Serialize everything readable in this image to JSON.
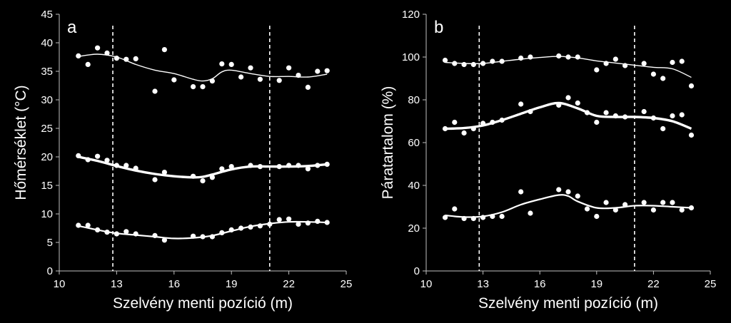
{
  "chart_data": [
    {
      "type": "scatter",
      "panel_label": "a",
      "xlabel": "Szelvény menti pozíció (m)",
      "ylabel": "Hőmérséklet (°C)",
      "xlim": [
        10,
        25
      ],
      "ylim": [
        0,
        45
      ],
      "xticks": [
        "10",
        "13",
        "16",
        "19",
        "22",
        "25"
      ],
      "yticks": [
        "0",
        "5",
        "10",
        "15",
        "20",
        "25",
        "30",
        "35",
        "40",
        "45"
      ],
      "vlines": [
        12.8,
        21.0
      ],
      "series": [
        {
          "points": [
            [
              11.0,
              37.7
            ],
            [
              11.5,
              36.2
            ],
            [
              12.0,
              39.1
            ],
            [
              12.5,
              38.2
            ],
            [
              13.0,
              37.3
            ],
            [
              13.5,
              37.1
            ],
            [
              14.0,
              37.2
            ],
            [
              15.0,
              31.5
            ],
            [
              15.5,
              38.8
            ],
            [
              16.0,
              33.5
            ],
            [
              17.0,
              32.3
            ],
            [
              17.5,
              32.3
            ],
            [
              18.0,
              33.3
            ],
            [
              18.5,
              36.3
            ],
            [
              19.0,
              36.2
            ],
            [
              19.5,
              34.0
            ],
            [
              20.0,
              35.6
            ],
            [
              20.5,
              33.6
            ],
            [
              21.5,
              33.4
            ],
            [
              22.0,
              35.6
            ],
            [
              22.5,
              34.3
            ],
            [
              23.0,
              32.2
            ],
            [
              23.5,
              35.0
            ],
            [
              24.0,
              35.1
            ]
          ],
          "trend": [
            [
              11,
              37.6
            ],
            [
              12,
              38.0
            ],
            [
              13,
              37.5
            ],
            [
              14,
              36.2
            ],
            [
              15,
              35.2
            ],
            [
              16,
              34.6
            ],
            [
              17,
              33.6
            ],
            [
              17.5,
              33.3
            ],
            [
              18,
              33.7
            ],
            [
              18.5,
              34.9
            ],
            [
              19,
              35.2
            ],
            [
              20,
              34.6
            ],
            [
              21,
              34.1
            ],
            [
              22,
              34.1
            ],
            [
              23,
              34.0
            ],
            [
              24,
              34.5
            ]
          ]
        },
        {
          "points": [
            [
              11.0,
              20.2
            ],
            [
              11.5,
              19.5
            ],
            [
              12.0,
              20.1
            ],
            [
              12.5,
              19.4
            ],
            [
              13.0,
              18.5
            ],
            [
              13.5,
              18.5
            ],
            [
              14.0,
              18.0
            ],
            [
              15.0,
              16.0
            ],
            [
              15.5,
              17.3
            ],
            [
              17.0,
              16.6
            ],
            [
              17.5,
              15.8
            ],
            [
              18.0,
              16.4
            ],
            [
              18.5,
              17.9
            ],
            [
              19.0,
              18.3
            ],
            [
              20.0,
              18.5
            ],
            [
              20.5,
              18.3
            ],
            [
              21.5,
              18.3
            ],
            [
              22.0,
              18.5
            ],
            [
              22.5,
              18.5
            ],
            [
              23.0,
              17.9
            ],
            [
              23.5,
              18.5
            ],
            [
              24.0,
              18.7
            ]
          ],
          "trend": [
            [
              11,
              20.0
            ],
            [
              12,
              19.3
            ],
            [
              13,
              18.4
            ],
            [
              14,
              17.6
            ],
            [
              15,
              17.0
            ],
            [
              16,
              16.6
            ],
            [
              17,
              16.4
            ],
            [
              17.5,
              16.5
            ],
            [
              18,
              16.9
            ],
            [
              19,
              17.8
            ],
            [
              20,
              18.3
            ],
            [
              21,
              18.3
            ],
            [
              22,
              18.3
            ],
            [
              23,
              18.4
            ],
            [
              24,
              18.7
            ]
          ]
        },
        {
          "points": [
            [
              11.0,
              8.0
            ],
            [
              11.5,
              8.0
            ],
            [
              12.0,
              7.2
            ],
            [
              12.5,
              6.8
            ],
            [
              13.0,
              6.5
            ],
            [
              13.5,
              6.9
            ],
            [
              14.0,
              6.5
            ],
            [
              15.0,
              6.2
            ],
            [
              15.5,
              5.4
            ],
            [
              17.0,
              6.1
            ],
            [
              17.5,
              6.0
            ],
            [
              18.0,
              6.0
            ],
            [
              18.5,
              6.7
            ],
            [
              19.0,
              7.2
            ],
            [
              19.5,
              7.5
            ],
            [
              20.0,
              7.7
            ],
            [
              20.5,
              7.9
            ],
            [
              21.0,
              8.2
            ],
            [
              21.5,
              9.0
            ],
            [
              22.0,
              9.1
            ],
            [
              22.5,
              8.2
            ],
            [
              23.0,
              8.4
            ],
            [
              23.5,
              8.7
            ],
            [
              24.0,
              8.5
            ]
          ],
          "trend": [
            [
              11,
              7.9
            ],
            [
              12,
              7.2
            ],
            [
              13,
              6.6
            ],
            [
              14,
              6.3
            ],
            [
              15,
              6.0
            ],
            [
              16,
              5.7
            ],
            [
              17,
              5.8
            ],
            [
              18,
              6.2
            ],
            [
              19,
              7.0
            ],
            [
              20,
              7.8
            ],
            [
              21,
              8.3
            ],
            [
              22,
              8.6
            ],
            [
              23,
              8.6
            ],
            [
              24,
              8.5
            ]
          ]
        }
      ]
    },
    {
      "type": "scatter",
      "panel_label": "b",
      "xlabel": "Szelvény menti pozíció (m)",
      "ylabel": "Páratartalom (%)",
      "xlim": [
        10,
        25
      ],
      "ylim": [
        0,
        120
      ],
      "xticks": [
        "10",
        "13",
        "16",
        "19",
        "22",
        "25"
      ],
      "yticks": [
        "0",
        "20",
        "40",
        "60",
        "80",
        "100",
        "120"
      ],
      "vlines": [
        12.8,
        21.0
      ],
      "series": [
        {
          "points": [
            [
              11.0,
              98.5
            ],
            [
              11.5,
              97.0
            ],
            [
              12.0,
              96.5
            ],
            [
              12.5,
              96.5
            ],
            [
              13.0,
              97.0
            ],
            [
              13.5,
              98.0
            ],
            [
              14.0,
              98.0
            ],
            [
              15.0,
              99.5
            ],
            [
              15.5,
              100.0
            ],
            [
              17.0,
              100.5
            ],
            [
              17.5,
              100.0
            ],
            [
              18.0,
              100.0
            ],
            [
              19.0,
              94.0
            ],
            [
              19.5,
              97.0
            ],
            [
              20.0,
              99.0
            ],
            [
              20.5,
              96.0
            ],
            [
              21.5,
              97.0
            ],
            [
              22.0,
              92.0
            ],
            [
              22.5,
              90.0
            ],
            [
              23.0,
              97.5
            ],
            [
              23.5,
              98.0
            ],
            [
              24.0,
              86.5
            ]
          ],
          "trend": [
            [
              11,
              97.5
            ],
            [
              12,
              97.0
            ],
            [
              13,
              97.0
            ],
            [
              14,
              98.0
            ],
            [
              15,
              99.0
            ],
            [
              16,
              99.8
            ],
            [
              17,
              100.3
            ],
            [
              18,
              99.6
            ],
            [
              19,
              98.2
            ],
            [
              20,
              97.2
            ],
            [
              21,
              96.2
            ],
            [
              22,
              95.2
            ],
            [
              23,
              94.5
            ],
            [
              24,
              90.5
            ]
          ]
        },
        {
          "points": [
            [
              11.0,
              66.5
            ],
            [
              11.5,
              69.5
            ],
            [
              12.0,
              64.5
            ],
            [
              12.5,
              66.5
            ],
            [
              13.0,
              69.0
            ],
            [
              13.5,
              69.5
            ],
            [
              14.0,
              70.5
            ],
            [
              15.0,
              78.0
            ],
            [
              15.5,
              74.5
            ],
            [
              17.0,
              77.5
            ],
            [
              17.5,
              81.0
            ],
            [
              18.0,
              78.5
            ],
            [
              18.5,
              74.0
            ],
            [
              19.0,
              69.5
            ],
            [
              19.5,
              74.0
            ],
            [
              20.0,
              72.5
            ],
            [
              20.5,
              72.0
            ],
            [
              21.5,
              74.5
            ],
            [
              22.0,
              71.5
            ],
            [
              22.5,
              66.5
            ],
            [
              23.0,
              72.5
            ],
            [
              23.5,
              73.0
            ],
            [
              24.0,
              63.5
            ]
          ],
          "trend": [
            [
              11,
              66.5
            ],
            [
              12,
              66.8
            ],
            [
              13,
              68.0
            ],
            [
              14,
              70.5
            ],
            [
              15,
              73.5
            ],
            [
              16,
              76.5
            ],
            [
              17,
              78.5
            ],
            [
              18,
              76.0
            ],
            [
              19,
              72.5
            ],
            [
              20,
              72.0
            ],
            [
              21,
              72.0
            ],
            [
              22,
              71.5
            ],
            [
              23,
              70.0
            ],
            [
              24,
              66.5
            ]
          ]
        },
        {
          "points": [
            [
              11.0,
              25.0
            ],
            [
              11.5,
              29.0
            ],
            [
              12.0,
              24.5
            ],
            [
              12.5,
              24.5
            ],
            [
              13.0,
              25.0
            ],
            [
              13.5,
              25.5
            ],
            [
              14.0,
              25.5
            ],
            [
              15.0,
              37.0
            ],
            [
              15.5,
              27.0
            ],
            [
              17.0,
              38.0
            ],
            [
              17.5,
              37.0
            ],
            [
              18.0,
              35.0
            ],
            [
              18.5,
              29.0
            ],
            [
              19.0,
              25.5
            ],
            [
              19.5,
              32.0
            ],
            [
              20.0,
              28.5
            ],
            [
              20.5,
              31.0
            ],
            [
              21.5,
              32.0
            ],
            [
              22.0,
              28.5
            ],
            [
              22.5,
              32.0
            ],
            [
              23.0,
              32.0
            ],
            [
              23.5,
              28.5
            ],
            [
              24.0,
              29.5
            ]
          ],
          "trend": [
            [
              11,
              26.0
            ],
            [
              12,
              25.2
            ],
            [
              13,
              25.5
            ],
            [
              14,
              27.5
            ],
            [
              15,
              31.0
            ],
            [
              16,
              33.5
            ],
            [
              17,
              35.5
            ],
            [
              17.5,
              35.0
            ],
            [
              18,
              32.5
            ],
            [
              19,
              29.5
            ],
            [
              20,
              29.5
            ],
            [
              21,
              30.5
            ],
            [
              22,
              30.5
            ],
            [
              23,
              30.0
            ],
            [
              24,
              29.5
            ]
          ]
        }
      ]
    }
  ]
}
